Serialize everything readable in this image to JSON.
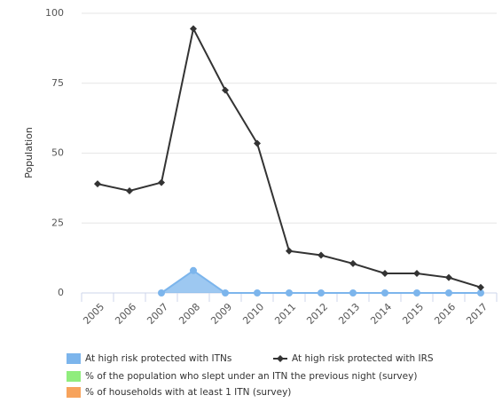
{
  "chart_data": {
    "type": "line",
    "y_label": "Population",
    "categories": [
      "2005",
      "2006",
      "2007",
      "2008",
      "2009",
      "2010",
      "2011",
      "2012",
      "2013",
      "2014",
      "2015",
      "2016",
      "2017"
    ],
    "series": [
      {
        "name": "At high risk protected with ITNs",
        "color": "#7cb5ec",
        "kind": "area",
        "values": [
          null,
          null,
          0,
          8,
          0,
          0,
          0,
          0,
          0,
          0,
          0,
          0,
          0
        ]
      },
      {
        "name": "At high risk protected with IRS",
        "color": "#333333",
        "kind": "line",
        "values": [
          39,
          36.5,
          39.5,
          94.5,
          72.5,
          53.5,
          15,
          13.5,
          10.5,
          7,
          7,
          5.5,
          2
        ]
      },
      {
        "name": "% of the population who slept under an ITN the previous night (survey)",
        "color": "#90ed7d",
        "kind": "line",
        "values": [
          null,
          null,
          null,
          null,
          null,
          null,
          null,
          null,
          null,
          null,
          null,
          null,
          null
        ]
      },
      {
        "name": "% of households with at least 1 ITN (survey)",
        "color": "#f7a35c",
        "kind": "line",
        "values": [
          null,
          null,
          null,
          null,
          null,
          null,
          null,
          null,
          null,
          null,
          null,
          null,
          null
        ]
      }
    ],
    "ylim": [
      0,
      100
    ],
    "yticks": [
      0,
      25,
      50,
      75,
      100
    ],
    "grid": true
  }
}
